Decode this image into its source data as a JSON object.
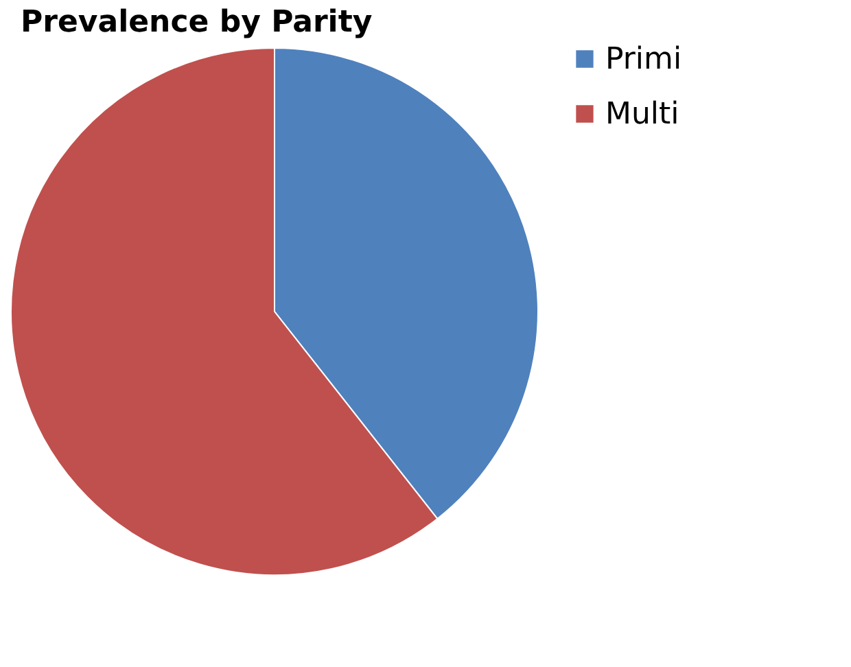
{
  "chart_data": {
    "type": "pie",
    "title": "Prevalence by Parity",
    "categories": [
      "Primi",
      "Multi"
    ],
    "values": [
      39.4,
      60.6
    ],
    "colors": [
      "#4f81bd",
      "#c0504d"
    ],
    "legend": "right"
  }
}
